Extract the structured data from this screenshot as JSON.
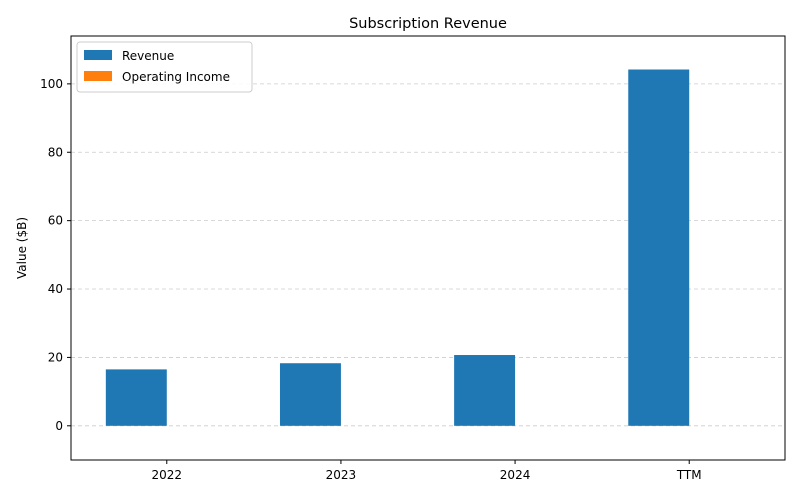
{
  "chart_data": {
    "type": "bar",
    "title": "Subscription Revenue",
    "xlabel": "",
    "ylabel": "Value ($B)",
    "categories": [
      "2022",
      "2023",
      "2024",
      "TTM"
    ],
    "series": [
      {
        "name": "Revenue",
        "values": [
          16.5,
          18.3,
          20.7,
          104.2
        ],
        "color": "#1f77b4"
      },
      {
        "name": "Operating Income",
        "values": [
          0,
          0,
          0,
          0
        ],
        "color": "#ff7f0e"
      }
    ],
    "ylim": [
      -10,
      114
    ],
    "yticks": [
      0,
      20,
      40,
      60,
      80,
      100
    ],
    "grid": "y-dashed",
    "legend_position": "top-left"
  }
}
